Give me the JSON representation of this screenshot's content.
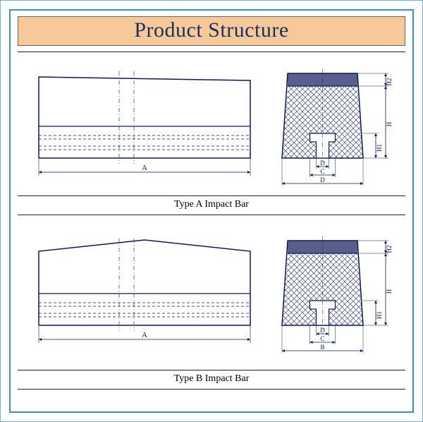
{
  "title": "Product    Structure",
  "title_bg": "#f6c89a",
  "title_color": "#18325a",
  "stroke": "#0a1a5a",
  "hatch_stroke": "#414a7a",
  "solid_fill": "#5a5e8a",
  "panels": [
    {
      "caption": "Type A Impact Bar",
      "side_dim_label": "A",
      "cross_bottom_labels": [
        "D",
        "C",
        "D"
      ],
      "cross_right_labels": [
        "H2",
        "H",
        "H1"
      ]
    },
    {
      "caption": "Type B Impact Bar",
      "side_dim_label": "A",
      "cross_bottom_labels": [
        "D",
        "C",
        "B"
      ],
      "cross_right_labels": [
        "H2",
        "H",
        "H1"
      ]
    }
  ]
}
